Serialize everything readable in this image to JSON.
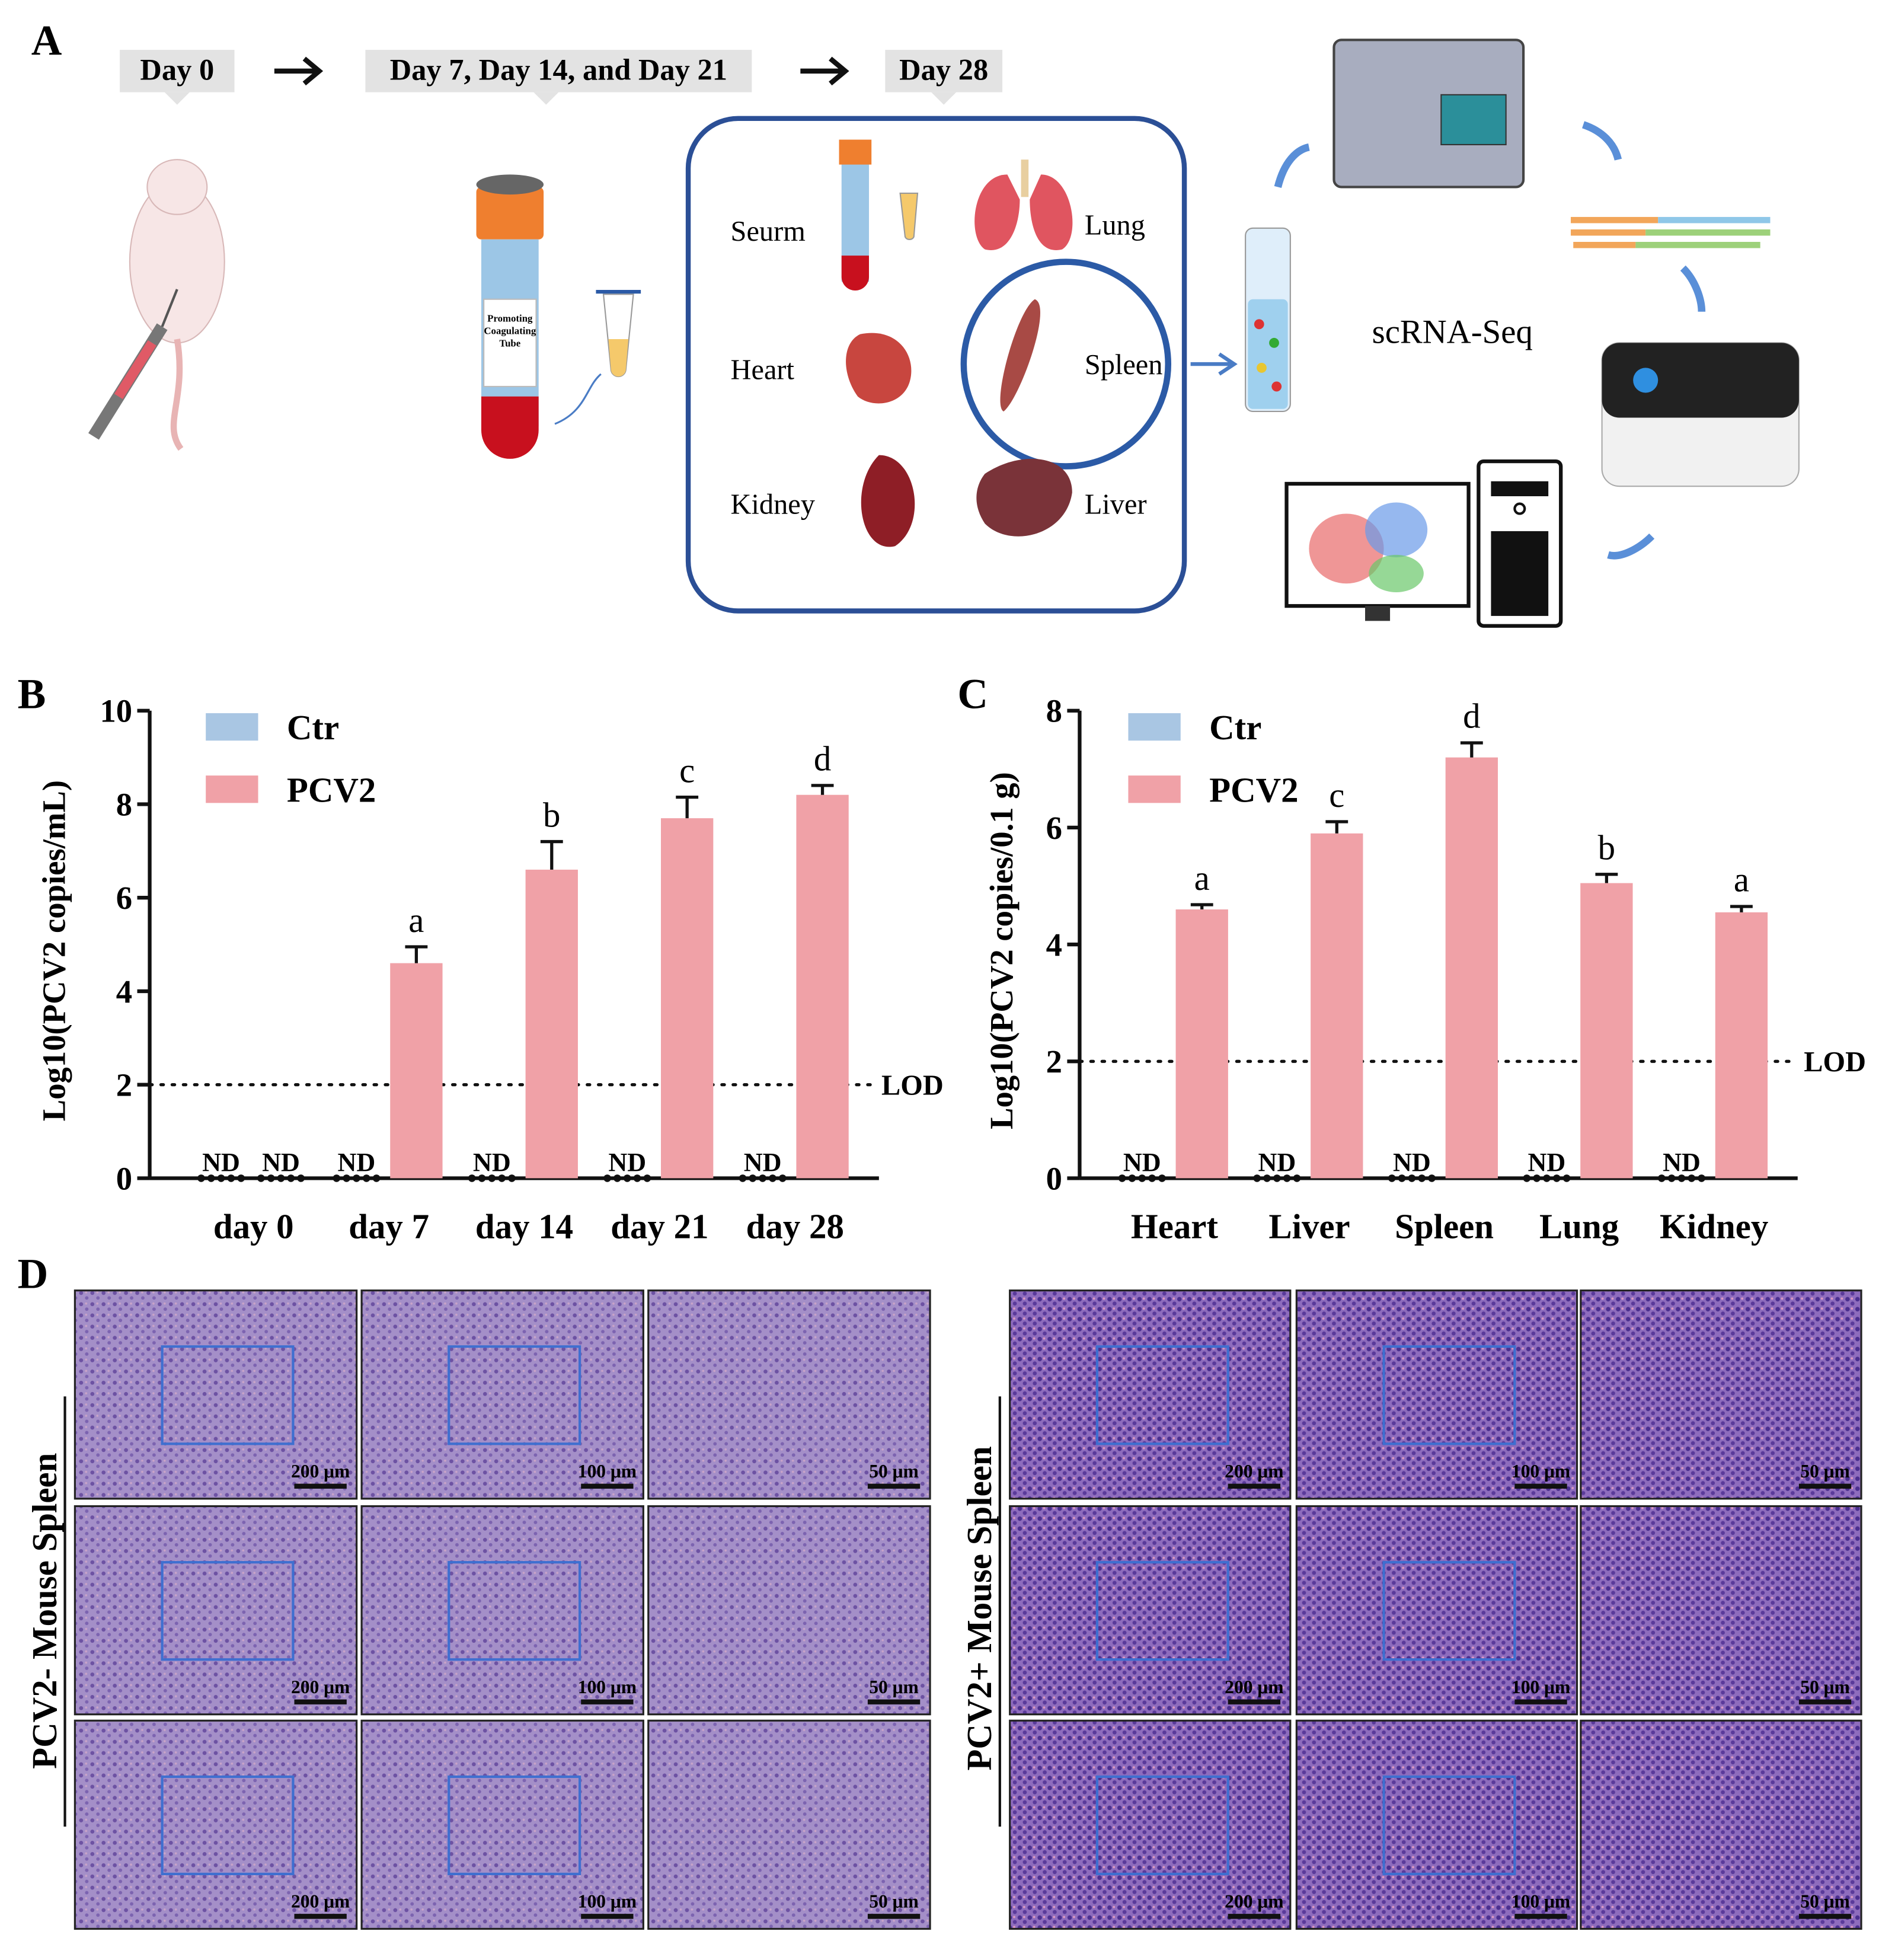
{
  "panel_labels": [
    "A",
    "B",
    "C",
    "D"
  ],
  "panel_a": {
    "timeline": [
      "Day 0",
      "Day 7, Day 14, and Day 21",
      "Day 28"
    ],
    "tube_label": [
      "Promoting",
      "Coagulating",
      "Tube"
    ],
    "samples": [
      "Seurm",
      "Lung",
      "Heart",
      "Spleen",
      "Kidney",
      "Liver"
    ],
    "method": "scRNA-Seq"
  },
  "chart_data": [
    {
      "type": "bar",
      "ylabel": "Log10(PCV2 copies/mL)",
      "categories": [
        "day 0",
        "day 7",
        "day 14",
        "day 21",
        "day 28"
      ],
      "series": [
        {
          "name": "Ctr",
          "color": "#a9c6e3",
          "values": [
            null,
            null,
            null,
            null,
            null
          ],
          "value_labels": [
            "ND",
            "ND",
            "ND",
            "ND",
            "ND"
          ]
        },
        {
          "name": "PCV2",
          "color": "#f0a1a7",
          "values": [
            null,
            4.6,
            6.6,
            7.7,
            8.2
          ],
          "errors": [
            null,
            0.35,
            0.6,
            0.45,
            0.2
          ],
          "value_labels": [
            "ND",
            null,
            null,
            null,
            null
          ],
          "annotations": [
            null,
            "a",
            "b",
            "c",
            "d"
          ]
        }
      ],
      "ylim": [
        0,
        10
      ],
      "yticks": [
        0,
        2,
        4,
        6,
        8,
        10
      ],
      "lod": {
        "value": 2,
        "label": "LOD"
      },
      "legend": "top-left"
    },
    {
      "type": "bar",
      "ylabel": "Log10(PCV2 copies/0.1 g)",
      "categories": [
        "Heart",
        "Liver",
        "Spleen",
        "Lung",
        "Kidney"
      ],
      "series": [
        {
          "name": "Ctr",
          "color": "#a9c6e3",
          "values": [
            null,
            null,
            null,
            null,
            null
          ],
          "value_labels": [
            "ND",
            "ND",
            "ND",
            "ND",
            "ND"
          ]
        },
        {
          "name": "PCV2",
          "color": "#f0a1a7",
          "values": [
            4.6,
            5.9,
            7.2,
            5.05,
            4.55
          ],
          "errors": [
            0.08,
            0.2,
            0.25,
            0.15,
            0.1
          ],
          "annotations": [
            "a",
            "c",
            "d",
            "b",
            "a"
          ]
        }
      ],
      "ylim": [
        0,
        8
      ],
      "yticks": [
        0,
        2,
        4,
        6,
        8
      ],
      "lod": {
        "value": 2,
        "label": "LOD"
      },
      "legend": "top-left"
    }
  ],
  "panel_d": {
    "groups": [
      "PCV2- Mouse Spleen",
      "PCV2+ Mouse Spleen"
    ],
    "scale_bars": [
      "200 μm",
      "100 μm",
      "50 μm"
    ]
  }
}
